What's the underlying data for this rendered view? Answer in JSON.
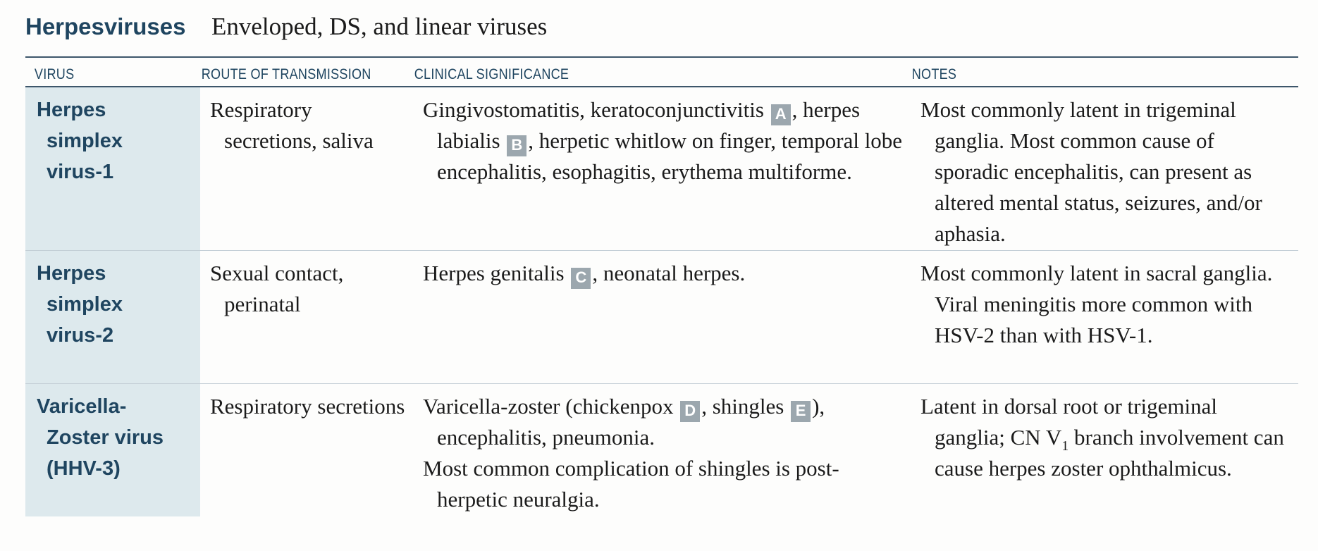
{
  "header": {
    "title": "Herpesviruses",
    "subtitle": "Enveloped, DS, and linear viruses"
  },
  "table": {
    "columns": [
      "VIRUS",
      "ROUTE OF TRANSMISSION",
      "CLINICAL SIGNIFICANCE",
      "NOTES"
    ],
    "rows": [
      {
        "virus_lines": [
          "Herpes",
          "simplex",
          "virus-1"
        ],
        "route": "Respiratory secretions, saliva",
        "clinical": {
          "t1": "Gingivostomatitis, keratoconjunctivitis",
          "ref1": "A",
          "t2": ", herpes labialis",
          "ref2": "B",
          "t3": ", herpetic whitlow on finger, temporal lobe encephalitis, esophagitis, erythema multiforme."
        },
        "notes": "Most commonly latent in trigeminal ganglia. Most common cause of sporadic encephalitis, can present as altered mental status, seizures, and/or aphasia."
      },
      {
        "virus_lines": [
          "Herpes",
          "simplex",
          "virus-2"
        ],
        "route": "Sexual contact, perinatal",
        "clinical": {
          "t1": "Herpes genitalis",
          "ref1": "C",
          "t2": ", neonatal herpes."
        },
        "notes": "Most commonly latent in sacral ganglia. Viral meningitis more common with HSV-2 than with HSV-1."
      },
      {
        "virus_lines": [
          "Varicella-",
          "Zoster virus",
          "(HHV-3)"
        ],
        "route": "Respiratory secretions",
        "clinical": {
          "t1": "Varicella-zoster (chickenpox",
          "ref1": "D",
          "t2": ", shingles",
          "ref2": "E",
          "t3": "), encephalitis, pneumonia.",
          "p2": "Most common complication of shingles is post-herpetic neuralgia."
        },
        "notes": {
          "t1": "Latent in dorsal root or trigeminal ganglia; CN V",
          "sub": "1",
          "t2": " branch involvement can cause herpes zoster ophthalmicus."
        }
      }
    ]
  }
}
